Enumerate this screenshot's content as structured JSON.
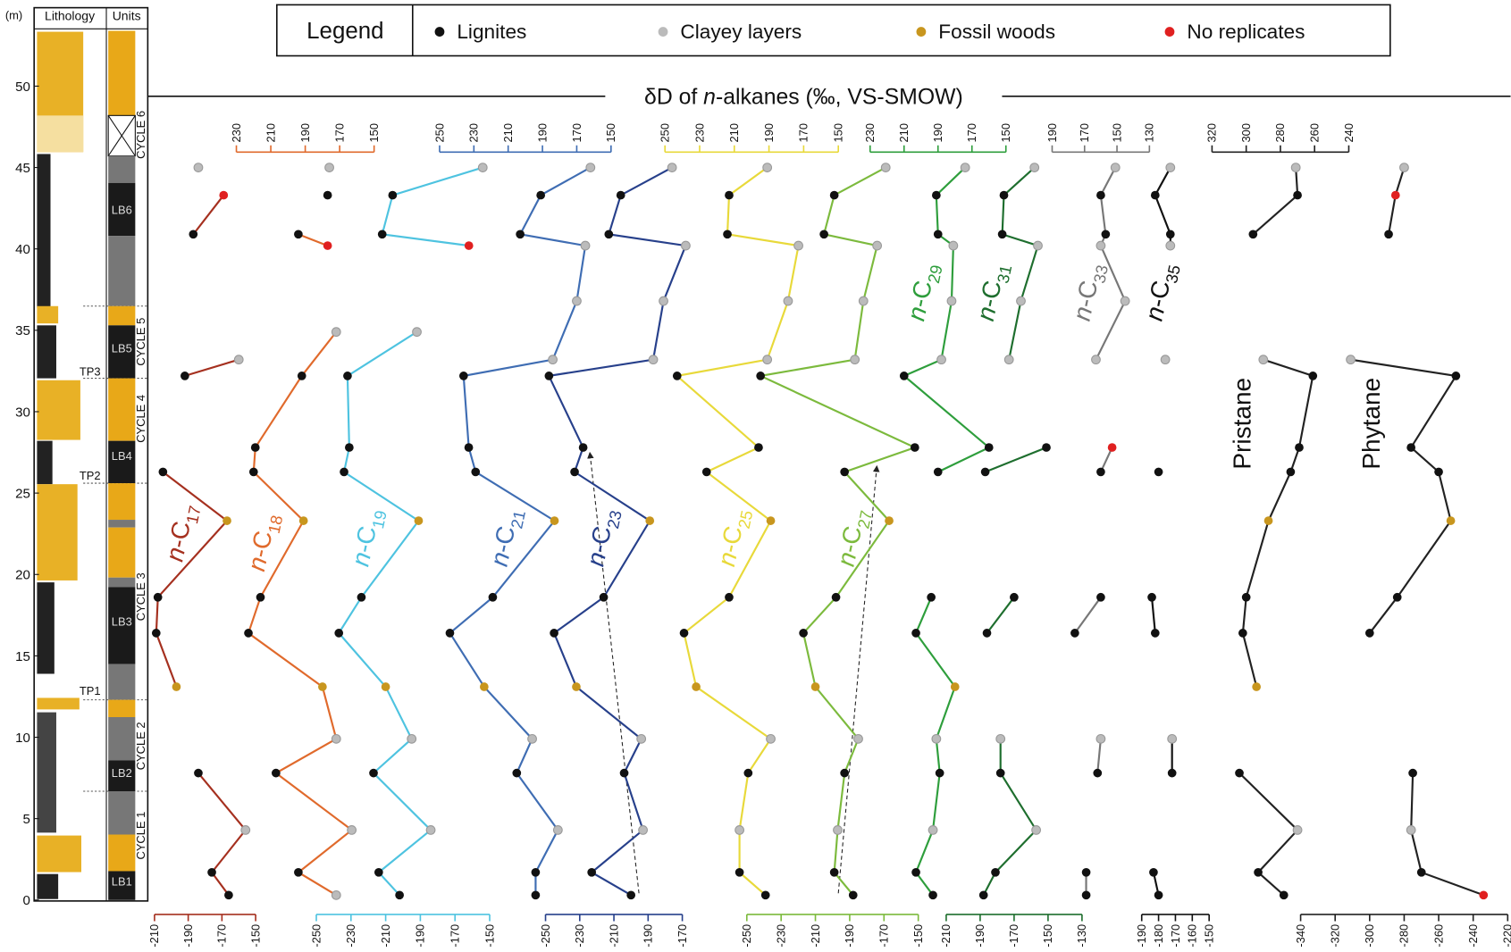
{
  "chart_data": {
    "type": "depth-profile",
    "title": [
      "δD of ",
      "n",
      "-alkanes (‰, VS-SMOW)"
    ],
    "legend": {
      "title": "Legend",
      "items": [
        {
          "name": "Lignites",
          "color": "#111111"
        },
        {
          "name": "Clayey layers",
          "color": "#bbbbbb"
        },
        {
          "name": "Fossil woods",
          "color": "#c8961e"
        },
        {
          "name": "No replicates",
          "color": "#e02020"
        }
      ]
    },
    "y_label": "(m)",
    "ylim": [
      0,
      54.7
    ],
    "yticks": [
      0,
      5,
      10,
      15,
      20,
      25,
      30,
      35,
      40,
      45,
      50
    ],
    "lithology_header": "Lithology",
    "units_header": "Units",
    "units": [
      "LB1",
      "LB2",
      "LB3",
      "LB4",
      "LB5",
      "LB6"
    ],
    "cycles": [
      "CYCLE 1",
      "CYCLE 2",
      "CYCLE 3",
      "CYCLE 4",
      "CYCLE 5",
      "CYCLE 6"
    ],
    "turning_points": [
      "TP1",
      "TP2",
      "TP3"
    ],
    "series": [
      {
        "label": [
          "n",
          "-C",
          "17"
        ],
        "color": "#a5301f",
        "axis": "bottom",
        "xlim": [
          -210,
          -150
        ],
        "xticks": [
          -210,
          -190,
          -170,
          -150
        ],
        "depth": [
          45.0,
          null,
          43.3,
          40.9,
          null,
          33.2,
          32.2,
          null,
          26.3,
          23.3,
          18.6,
          16.4,
          13.1,
          null,
          7.8,
          4.3,
          1.7,
          0.3
        ],
        "values": [
          -184,
          null,
          -169,
          -187,
          null,
          -160,
          -192,
          null,
          -205,
          -167,
          -208,
          -209,
          -197,
          null,
          -184,
          -156,
          -176,
          -166
        ],
        "point_colors": [
          "#bbbbbb",
          null,
          "#e02020",
          "#111111",
          null,
          "#bbbbbb",
          "#111111",
          null,
          "#111111",
          "#c8961e",
          "#111111",
          "#111111",
          "#c8961e",
          null,
          "#111111",
          "#bbbbbb",
          "#111111",
          "#111111"
        ]
      },
      {
        "label": [
          "n",
          "-C",
          "18"
        ],
        "color": "#e06a2c",
        "axis": "top",
        "xlim": [
          230,
          150
        ],
        "xticks": [
          230,
          210,
          190,
          170,
          150
        ],
        "depth": [
          45.0,
          null,
          43.3,
          null,
          40.9,
          40.2,
          null,
          34.9,
          32.2,
          27.8,
          26.3,
          23.3,
          18.6,
          16.4,
          13.1,
          9.9,
          7.8,
          4.3,
          1.7,
          0.3
        ],
        "values": [
          176,
          null,
          177,
          null,
          194,
          177,
          null,
          172,
          192,
          219,
          220,
          191,
          216,
          223,
          180,
          172,
          207,
          163,
          194,
          172
        ],
        "point_colors": [
          "#bbbbbb",
          null,
          "#111111",
          null,
          "#111111",
          "#e02020",
          null,
          "#bbbbbb",
          "#111111",
          "#111111",
          "#111111",
          "#c8961e",
          "#111111",
          "#111111",
          "#c8961e",
          "#bbbbbb",
          "#111111",
          "#bbbbbb",
          "#111111",
          "#bbbbbb"
        ]
      },
      {
        "label": [
          "n",
          "-C",
          "19"
        ],
        "color": "#4ec3e0",
        "axis": "bottom",
        "xlim": [
          -250,
          -150
        ],
        "xticks": [
          -250,
          -230,
          -210,
          -190,
          -170,
          -150
        ],
        "depth": [
          45.0,
          43.3,
          40.9,
          40.2,
          null,
          34.9,
          32.2,
          27.8,
          26.3,
          23.3,
          18.6,
          16.4,
          13.1,
          9.9,
          7.8,
          4.3,
          1.7,
          0.3
        ],
        "values": [
          -154,
          -206,
          -212,
          -162,
          null,
          -192,
          -232,
          -231,
          -234,
          -191,
          -224,
          -237,
          -210,
          -195,
          -217,
          -184,
          -214,
          -202
        ],
        "point_colors": [
          "#bbbbbb",
          "#111111",
          "#111111",
          "#e02020",
          null,
          "#bbbbbb",
          "#111111",
          "#111111",
          "#111111",
          "#c8961e",
          "#111111",
          "#111111",
          "#c8961e",
          "#bbbbbb",
          "#111111",
          "#bbbbbb",
          "#111111",
          "#111111"
        ]
      },
      {
        "label": [
          "n",
          "-C",
          "21"
        ],
        "color": "#3f6db3",
        "axis": "top",
        "xlim": [
          250,
          150
        ],
        "xticks": [
          250,
          230,
          210,
          190,
          170,
          150
        ],
        "depth": [
          45.0,
          43.3,
          40.9,
          40.2,
          36.8,
          33.2,
          32.2,
          27.8,
          26.3,
          23.3,
          18.6,
          16.4,
          13.1,
          9.9,
          7.8,
          4.3,
          1.7,
          0.3
        ],
        "values": [
          162,
          191,
          203,
          165,
          170,
          184,
          236,
          233,
          229,
          183,
          219,
          244,
          224,
          196,
          205,
          181,
          194,
          194
        ],
        "point_colors": [
          "#bbbbbb",
          "#111111",
          "#111111",
          "#bbbbbb",
          "#bbbbbb",
          "#bbbbbb",
          "#111111",
          "#111111",
          "#111111",
          "#c8961e",
          "#111111",
          "#111111",
          "#c8961e",
          "#bbbbbb",
          "#111111",
          "#bbbbbb",
          "#111111",
          "#111111"
        ]
      },
      {
        "label": [
          "n",
          "-C",
          "23"
        ],
        "color": "#27408b",
        "axis": "bottom",
        "xlim": [
          -250,
          -170
        ],
        "xticks": [
          -250,
          -230,
          -210,
          -190,
          -170
        ],
        "depth": [
          45.0,
          43.3,
          40.9,
          40.2,
          36.8,
          33.2,
          32.2,
          27.8,
          26.3,
          23.3,
          18.6,
          16.4,
          13.1,
          9.9,
          7.8,
          4.3,
          1.7,
          0.3
        ],
        "values": [
          -176,
          -206,
          -213,
          -168,
          -181,
          -187,
          -248,
          -228,
          -233,
          -189,
          -216,
          -245,
          -232,
          -194,
          -204,
          -193,
          -223,
          -200
        ],
        "point_colors": [
          "#bbbbbb",
          "#111111",
          "#111111",
          "#bbbbbb",
          "#bbbbbb",
          "#bbbbbb",
          "#111111",
          "#111111",
          "#111111",
          "#c8961e",
          "#111111",
          "#111111",
          "#c8961e",
          "#bbbbbb",
          "#111111",
          "#bbbbbb",
          "#111111",
          "#111111"
        ]
      },
      {
        "label": [
          "n",
          "-C",
          "25"
        ],
        "color": "#e8d93a",
        "axis": "top",
        "xlim": [
          250,
          150
        ],
        "xticks": [
          250,
          230,
          210,
          190,
          170,
          150
        ],
        "depth": [
          45.0,
          43.3,
          40.9,
          40.2,
          36.8,
          33.2,
          32.2,
          27.8,
          26.3,
          23.3,
          18.6,
          16.4,
          13.1,
          9.9,
          7.8,
          4.3,
          1.7,
          0.3
        ],
        "values": [
          191,
          213,
          214,
          173,
          179,
          191,
          243,
          196,
          226,
          189,
          213,
          239,
          232,
          189,
          202,
          207,
          207,
          192
        ],
        "point_colors": [
          "#bbbbbb",
          "#111111",
          "#111111",
          "#bbbbbb",
          "#bbbbbb",
          "#bbbbbb",
          "#111111",
          "#111111",
          "#111111",
          "#c8961e",
          "#111111",
          "#111111",
          "#c8961e",
          "#bbbbbb",
          "#111111",
          "#bbbbbb",
          "#111111",
          "#111111"
        ]
      },
      {
        "label": [
          "n",
          "-C",
          "27"
        ],
        "color": "#7cba3d",
        "axis": "bottom",
        "xlim": [
          -250,
          -150
        ],
        "xticks": [
          -250,
          -230,
          -210,
          -190,
          -170,
          -150
        ],
        "depth": [
          45.0,
          43.3,
          40.9,
          40.2,
          36.8,
          33.2,
          32.2,
          27.8,
          26.3,
          23.3,
          18.6,
          16.4,
          13.1,
          9.9,
          7.8,
          4.3,
          1.7,
          0.3
        ],
        "values": [
          -169,
          -199,
          -205,
          -174,
          -182,
          -187,
          -242,
          -152,
          -193,
          -167,
          -198,
          -217,
          -210,
          -185,
          -193,
          -197,
          -199,
          -188
        ],
        "point_colors": [
          "#bbbbbb",
          "#111111",
          "#111111",
          "#bbbbbb",
          "#bbbbbb",
          "#bbbbbb",
          "#111111",
          "#111111",
          "#111111",
          "#c8961e",
          "#111111",
          "#111111",
          "#c8961e",
          "#bbbbbb",
          "#111111",
          "#bbbbbb",
          "#111111",
          "#111111"
        ]
      },
      {
        "label": [
          "n",
          "-C",
          "29"
        ],
        "color": "#2e9e3c",
        "axis": "top",
        "xlim": [
          230,
          150
        ],
        "xticks": [
          230,
          210,
          190,
          170,
          150
        ],
        "depth": [
          45.0,
          43.3,
          40.9,
          40.2,
          36.8,
          33.2,
          32.2,
          27.8,
          26.3,
          null,
          18.6,
          16.4,
          13.1,
          9.9,
          7.8,
          4.3,
          1.7,
          0.3
        ],
        "values": [
          174,
          191,
          190,
          181,
          182,
          188,
          210,
          160,
          190,
          null,
          194,
          203,
          180,
          191,
          189,
          193,
          203,
          193
        ],
        "point_colors": [
          "#bbbbbb",
          "#111111",
          "#111111",
          "#bbbbbb",
          "#bbbbbb",
          "#bbbbbb",
          "#111111",
          "#111111",
          "#111111",
          null,
          "#111111",
          "#111111",
          "#c8961e",
          "#bbbbbb",
          "#111111",
          "#bbbbbb",
          "#111111",
          "#111111"
        ]
      },
      {
        "label": [
          "n",
          "-C",
          "31"
        ],
        "color": "#1e6e2e",
        "axis": "bottom",
        "xlim": [
          -210,
          -130
        ],
        "xticks": [
          -210,
          -190,
          -170,
          -150,
          -130
        ],
        "depth": [
          45.0,
          43.3,
          40.9,
          40.2,
          36.8,
          33.2,
          null,
          27.8,
          26.3,
          null,
          18.6,
          16.4,
          null,
          9.9,
          7.8,
          4.3,
          1.7,
          0.3
        ],
        "values": [
          -158,
          -176,
          -177,
          -156,
          -166,
          -173,
          null,
          -151,
          -187,
          null,
          -170,
          -186,
          null,
          -178,
          -178,
          -157,
          -181,
          -188
        ],
        "point_colors": [
          "#bbbbbb",
          "#111111",
          "#111111",
          "#bbbbbb",
          "#bbbbbb",
          "#bbbbbb",
          null,
          "#111111",
          "#111111",
          null,
          "#111111",
          "#111111",
          null,
          "#bbbbbb",
          "#111111",
          "#bbbbbb",
          "#111111",
          "#111111"
        ]
      },
      {
        "label": [
          "n",
          "-C",
          "33"
        ],
        "color": "#777777",
        "axis": "top",
        "xlim": [
          190,
          130
        ],
        "xticks": [
          190,
          170,
          150,
          130
        ],
        "depth": [
          45.0,
          43.3,
          40.9,
          40.2,
          36.8,
          33.2,
          null,
          27.8,
          26.3,
          null,
          18.6,
          16.4,
          null,
          9.9,
          7.8,
          null,
          1.7,
          0.3
        ],
        "values": [
          151,
          160,
          157,
          160,
          145,
          163,
          null,
          153,
          160,
          null,
          160,
          176,
          null,
          160,
          162,
          null,
          169,
          169
        ],
        "point_colors": [
          "#bbbbbb",
          "#111111",
          "#111111",
          "#bbbbbb",
          "#bbbbbb",
          "#bbbbbb",
          null,
          "#e02020",
          "#111111",
          null,
          "#111111",
          "#111111",
          null,
          "#bbbbbb",
          "#111111",
          null,
          "#111111",
          "#111111"
        ]
      },
      {
        "label": [
          "n",
          "-C",
          "35"
        ],
        "color": "#111111",
        "axis": "bottom",
        "xlim": [
          -190,
          -150
        ],
        "xticks": [
          -190,
          -180,
          -170,
          -160,
          -150
        ],
        "depth": [
          45.0,
          43.3,
          40.9,
          40.2,
          null,
          33.2,
          null,
          26.3,
          null,
          18.6,
          16.4,
          null,
          9.9,
          7.8,
          null,
          1.7,
          0.3
        ],
        "values": [
          -173,
          -182,
          -173,
          -173,
          null,
          -176,
          null,
          -180,
          null,
          -184,
          -182,
          null,
          -172,
          -172,
          null,
          -183,
          -180
        ],
        "point_colors": [
          "#bbbbbb",
          "#111111",
          "#111111",
          "#bbbbbb",
          null,
          "#bbbbbb",
          null,
          "#111111",
          null,
          "#111111",
          "#111111",
          null,
          "#bbbbbb",
          "#111111",
          null,
          "#111111",
          "#111111"
        ]
      },
      {
        "label": [
          "Pristane"
        ],
        "color": "#222222",
        "axis": "top",
        "xlim": [
          320,
          240
        ],
        "xticks": [
          320,
          300,
          280,
          260,
          240
        ],
        "depth": [
          45.0,
          43.3,
          40.9,
          null,
          33.2,
          32.2,
          27.8,
          26.3,
          23.3,
          18.6,
          16.4,
          13.1,
          null,
          7.8,
          4.3,
          1.7,
          0.3
        ],
        "values": [
          271,
          270,
          296,
          null,
          290,
          261,
          269,
          274,
          287,
          300,
          302,
          294,
          null,
          304,
          270,
          293,
          278
        ],
        "point_colors": [
          "#bbbbbb",
          "#111111",
          "#111111",
          null,
          "#bbbbbb",
          "#111111",
          "#111111",
          "#111111",
          "#c8961e",
          "#111111",
          "#111111",
          "#c8961e",
          null,
          "#111111",
          "#bbbbbb",
          "#111111",
          "#111111"
        ]
      },
      {
        "label": [
          "Phytane"
        ],
        "color": "#222222",
        "axis": "bottom",
        "xlim": [
          -340,
          -220
        ],
        "xticks": [
          -340,
          -320,
          -300,
          -280,
          -260,
          -240,
          -220
        ],
        "depth": [
          45.0,
          43.3,
          40.9,
          null,
          33.2,
          32.2,
          27.8,
          26.3,
          23.3,
          18.6,
          16.4,
          null,
          7.8,
          4.3,
          1.7,
          0.3
        ],
        "values": [
          -280,
          -285,
          -289,
          null,
          -311,
          -250,
          -276,
          -260,
          -253,
          -284,
          -300,
          null,
          -275,
          -276,
          -270,
          -234
        ],
        "point_colors": [
          "#bbbbbb",
          "#e02020",
          "#111111",
          null,
          "#bbbbbb",
          "#111111",
          "#111111",
          "#111111",
          "#c8961e",
          "#111111",
          "#111111",
          null,
          "#111111",
          "#bbbbbb",
          "#111111",
          "#e02020"
        ]
      }
    ]
  }
}
